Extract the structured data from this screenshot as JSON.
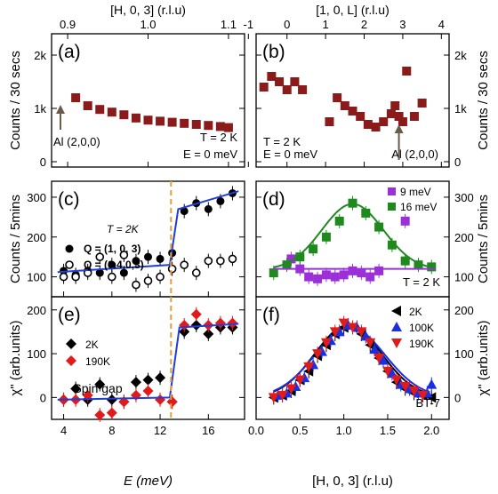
{
  "chart_data": [
    {
      "panel": "(a)",
      "type": "scatter",
      "top_axis_label": "[H, 0, 3] (r.l.u)",
      "x_ticks": [
        "0.9",
        "1.0",
        "1.1"
      ],
      "xlim": [
        0.88,
        1.12
      ],
      "ylabel": "Counts / 30 secs",
      "y_ticks": [
        "0",
        "1k",
        "2k"
      ],
      "ylim": [
        -100,
        2400
      ],
      "annotations": [
        "T = 2 K",
        "E = 0 meV",
        "Al (2,0,0)"
      ],
      "series": [
        {
          "color": "#8b1a1a",
          "marker": "square",
          "x": [
            0.91,
            0.925,
            0.94,
            0.955,
            0.97,
            0.985,
            1.0,
            1.015,
            1.03,
            1.045,
            1.06,
            1.075,
            1.09,
            1.1
          ],
          "y": [
            1200,
            1050,
            980,
            930,
            880,
            820,
            780,
            760,
            740,
            720,
            700,
            680,
            660,
            640
          ]
        }
      ]
    },
    {
      "panel": "(b)",
      "type": "scatter",
      "top_axis_label": "[1, 0, L] (r.l.u)",
      "x_ticks": [
        "-1",
        "0",
        "1",
        "2",
        "3",
        "4"
      ],
      "xlim": [
        -0.8,
        4.2
      ],
      "ylabel": "Counts / 30 secs",
      "y_ticks": [
        "0",
        "1k",
        "2k"
      ],
      "ylim": [
        -100,
        2400
      ],
      "annotations": [
        "T = 2 K",
        "E = 0 meV",
        "Al (2,0,0)"
      ],
      "series": [
        {
          "color": "#8b1a1a",
          "marker": "square",
          "x": [
            -0.6,
            -0.4,
            -0.2,
            0.0,
            0.2,
            0.4,
            1.1,
            1.3,
            1.5,
            1.7,
            1.9,
            2.1,
            2.3,
            2.5,
            2.7,
            2.8,
            2.9,
            3.0,
            3.1,
            3.3,
            3.5
          ],
          "y": [
            1400,
            1600,
            1500,
            1350,
            1500,
            1350,
            750,
            1200,
            1050,
            950,
            850,
            700,
            650,
            750,
            900,
            1050,
            850,
            750,
            1700,
            850,
            1100
          ]
        }
      ]
    },
    {
      "panel": "(c)",
      "type": "scatter",
      "ylabel": "Counts / 5mins",
      "y_ticks": [
        "100",
        "200",
        "300"
      ],
      "ylim": [
        50,
        340
      ],
      "x_ticks": [
        "4",
        "8",
        "12",
        "16"
      ],
      "xlim": [
        3,
        19
      ],
      "legend_title": "T = 2K",
      "series": [
        {
          "name": "Q = (1, 0, 3)",
          "marker": "filled-circle",
          "x": [
            4,
            5,
            6,
            7,
            8,
            9,
            10,
            11,
            12,
            13,
            14,
            15,
            16,
            17,
            18
          ],
          "y": [
            115,
            105,
            115,
            110,
            130,
            110,
            140,
            150,
            145,
            160,
            265,
            285,
            270,
            290,
            310
          ]
        },
        {
          "name": "Q = (0.4,0,3)",
          "marker": "open-circle",
          "x": [
            4,
            5,
            6,
            7,
            8,
            9,
            10,
            11,
            12,
            13,
            14,
            15,
            16,
            17,
            18
          ],
          "y": [
            100,
            100,
            110,
            150,
            100,
            155,
            80,
            90,
            100,
            120,
            130,
            110,
            140,
            140,
            145
          ]
        }
      ],
      "fit_line": {
        "x": [
          3.5,
          12.8,
          13.5,
          18.5
        ],
        "y": [
          112,
          130,
          270,
          315
        ],
        "color": "#1f3fd6"
      }
    },
    {
      "panel": "(d)",
      "type": "scatter",
      "ylabel": "Counts / 5mins",
      "y_ticks": [
        "100",
        "200",
        "300"
      ],
      "ylim": [
        50,
        340
      ],
      "x_ticks": [],
      "xlim": [
        0,
        2.2
      ],
      "annotations": [
        "T = 2 K"
      ],
      "series": [
        {
          "name": "9 meV",
          "color": "#9b30d9",
          "marker": "square",
          "x": [
            0.4,
            0.5,
            0.6,
            0.7,
            0.8,
            0.9,
            1.0,
            1.1,
            1.2,
            1.3,
            1.4,
            1.7
          ],
          "y": [
            145,
            120,
            100,
            95,
            105,
            100,
            105,
            115,
            110,
            100,
            115,
            240
          ]
        },
        {
          "name": "16 meV",
          "color": "#1e8a1e",
          "marker": "square",
          "x": [
            0.2,
            0.35,
            0.5,
            0.65,
            0.8,
            0.95,
            1.1,
            1.25,
            1.4,
            1.55,
            1.7,
            1.85,
            2.0
          ],
          "y": [
            110,
            130,
            150,
            170,
            200,
            240,
            285,
            260,
            225,
            180,
            140,
            130,
            125
          ]
        }
      ],
      "fit_lines": [
        {
          "color": "#9b30d9",
          "y": 120
        },
        {
          "color": "#1e8a1e",
          "center": 1.1,
          "amp": 165,
          "width": 0.35,
          "base": 118
        }
      ]
    },
    {
      "panel": "(e)",
      "type": "scatter",
      "xlabel": "E (meV)",
      "x_ticks": [
        "4",
        "8",
        "12",
        "16"
      ],
      "xlim": [
        3,
        19
      ],
      "ylabel": "χ\" (arb.units)",
      "y_ticks": [
        "0",
        "100",
        "200"
      ],
      "ylim": [
        -50,
        230
      ],
      "annotations": [
        "Spin gap"
      ],
      "series": [
        {
          "name": "2K",
          "marker": "diamond",
          "color": "#000000",
          "x": [
            4,
            5,
            6,
            7,
            8,
            9,
            10,
            11,
            12,
            13,
            14,
            15,
            16,
            17,
            18
          ],
          "y": [
            -5,
            20,
            -5,
            30,
            -5,
            -10,
            35,
            40,
            45,
            -10,
            150,
            165,
            145,
            160,
            160
          ]
        },
        {
          "name": "190K",
          "marker": "diamond",
          "color": "#e21a1a",
          "x": [
            4,
            5,
            6,
            7,
            8,
            9,
            10,
            11,
            12,
            13,
            14,
            15,
            16,
            17,
            18
          ],
          "y": [
            -5,
            -5,
            5,
            -40,
            -35,
            -10,
            5,
            15,
            -5,
            -10,
            165,
            190,
            165,
            170,
            170
          ]
        }
      ],
      "fit_line": {
        "x": [
          3.5,
          12.8,
          13.6,
          18.5
        ],
        "y": [
          -5,
          0,
          160,
          168
        ],
        "color": "#1f3fd6"
      }
    },
    {
      "panel": "(f)",
      "type": "scatter",
      "xlabel": "[H, 0, 3] (r.l.u)",
      "x_ticks": [
        "0.0",
        "0.5",
        "1.0",
        "1.5",
        "2.0"
      ],
      "xlim": [
        0,
        2.2
      ],
      "ylabel": "χ\" (arb.units)",
      "y_ticks": [
        "0",
        "100",
        "200"
      ],
      "ylim": [
        -50,
        230
      ],
      "annotations": [
        "BT-7"
      ],
      "series": [
        {
          "name": "2K",
          "marker": "triangle-left",
          "color": "#000000",
          "x": [
            0.2,
            0.3,
            0.4,
            0.5,
            0.6,
            0.7,
            0.8,
            0.9,
            1.0,
            1.1,
            1.2,
            1.3,
            1.4,
            1.5,
            1.6,
            1.7,
            1.8,
            1.9,
            2.0
          ],
          "y": [
            0,
            5,
            15,
            40,
            60,
            95,
            120,
            145,
            160,
            160,
            145,
            120,
            90,
            60,
            35,
            20,
            10,
            5,
            0
          ]
        },
        {
          "name": "100K",
          "marker": "triangle-up",
          "color": "#1a2fe2",
          "x": [
            0.25,
            0.35,
            0.45,
            0.55,
            0.65,
            0.75,
            0.85,
            0.95,
            1.05,
            1.15,
            1.25,
            1.35,
            1.45,
            1.55,
            1.65,
            1.75,
            1.85,
            1.95,
            2.0
          ],
          "y": [
            5,
            10,
            25,
            45,
            75,
            105,
            130,
            150,
            165,
            160,
            140,
            110,
            85,
            55,
            30,
            20,
            10,
            10,
            30
          ]
        },
        {
          "name": "190K",
          "marker": "triangle-down",
          "color": "#e21a1a",
          "x": [
            0.2,
            0.3,
            0.4,
            0.5,
            0.6,
            0.7,
            0.8,
            0.9,
            1.0,
            1.1,
            1.2,
            1.3,
            1.4,
            1.5,
            1.6,
            1.7,
            1.8,
            1.9
          ],
          "y": [
            0,
            5,
            20,
            40,
            70,
            100,
            125,
            150,
            170,
            160,
            150,
            125,
            90,
            60,
            40,
            25,
            15,
            5
          ]
        }
      ],
      "fit_lines": [
        {
          "color": "#000000",
          "center": 1.05,
          "amp": 165,
          "width": 0.38,
          "base": 0
        },
        {
          "color": "#1a2fe2",
          "center": 1.07,
          "amp": 160,
          "width": 0.4,
          "base": 0
        }
      ]
    }
  ],
  "shared": {
    "dashed_line_E": 12.9,
    "dashed_color": "#f39c33"
  }
}
